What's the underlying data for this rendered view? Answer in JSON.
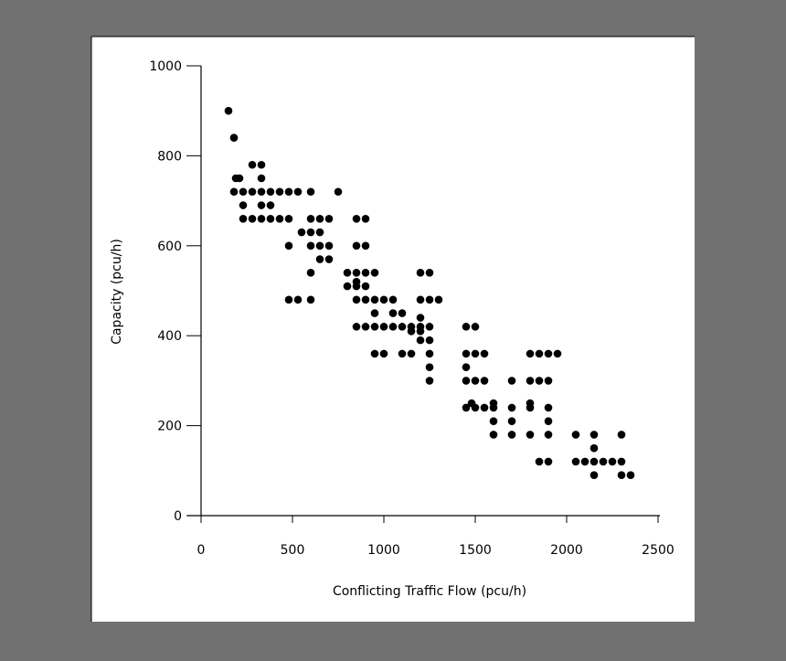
{
  "chart_data": {
    "type": "scatter",
    "title": "",
    "xlabel": "Conflicting Traffic Flow (pcu/h)",
    "ylabel": "Capacity (pcu/h)",
    "xlim": [
      0,
      2500
    ],
    "ylim": [
      0,
      1000
    ],
    "xticks": [
      "0",
      "500",
      "1000",
      "1500",
      "2000",
      "2500"
    ],
    "yticks": [
      "0",
      "200",
      "400",
      "600",
      "800",
      "1000"
    ],
    "xtick_values": [
      0,
      500,
      1000,
      1500,
      2000,
      2500
    ],
    "ytick_values": [
      0,
      200,
      400,
      600,
      800,
      1000
    ],
    "grid": false,
    "legend": "none",
    "marker_color": "#000000",
    "series": [
      {
        "points": [
          [
            150,
            900
          ],
          [
            180,
            840
          ],
          [
            190,
            750
          ],
          [
            210,
            750
          ],
          [
            180,
            720
          ],
          [
            230,
            720
          ],
          [
            280,
            780
          ],
          [
            330,
            780
          ],
          [
            330,
            750
          ],
          [
            280,
            720
          ],
          [
            330,
            720
          ],
          [
            380,
            720
          ],
          [
            430,
            720
          ],
          [
            480,
            720
          ],
          [
            530,
            720
          ],
          [
            600,
            720
          ],
          [
            750,
            720
          ],
          [
            230,
            690
          ],
          [
            330,
            690
          ],
          [
            380,
            690
          ],
          [
            230,
            660
          ],
          [
            280,
            660
          ],
          [
            330,
            660
          ],
          [
            380,
            660
          ],
          [
            430,
            660
          ],
          [
            480,
            660
          ],
          [
            600,
            660
          ],
          [
            650,
            660
          ],
          [
            700,
            660
          ],
          [
            850,
            660
          ],
          [
            900,
            660
          ],
          [
            600,
            630
          ],
          [
            650,
            630
          ],
          [
            550,
            630
          ],
          [
            480,
            600
          ],
          [
            600,
            600
          ],
          [
            650,
            600
          ],
          [
            700,
            600
          ],
          [
            850,
            600
          ],
          [
            900,
            600
          ],
          [
            650,
            570
          ],
          [
            700,
            570
          ],
          [
            600,
            540
          ],
          [
            800,
            540
          ],
          [
            850,
            540
          ],
          [
            900,
            540
          ],
          [
            950,
            540
          ],
          [
            1200,
            540
          ],
          [
            1250,
            540
          ],
          [
            800,
            510
          ],
          [
            850,
            510
          ],
          [
            900,
            510
          ],
          [
            850,
            520
          ],
          [
            480,
            480
          ],
          [
            530,
            480
          ],
          [
            600,
            480
          ],
          [
            850,
            480
          ],
          [
            900,
            480
          ],
          [
            950,
            480
          ],
          [
            1000,
            480
          ],
          [
            1050,
            480
          ],
          [
            1200,
            480
          ],
          [
            1250,
            480
          ],
          [
            1300,
            480
          ],
          [
            950,
            450
          ],
          [
            1050,
            450
          ],
          [
            1100,
            450
          ],
          [
            1200,
            440
          ],
          [
            850,
            420
          ],
          [
            900,
            420
          ],
          [
            950,
            420
          ],
          [
            1000,
            420
          ],
          [
            1050,
            420
          ],
          [
            1100,
            420
          ],
          [
            1150,
            420
          ],
          [
            1200,
            420
          ],
          [
            1250,
            420
          ],
          [
            1150,
            410
          ],
          [
            1200,
            410
          ],
          [
            1200,
            390
          ],
          [
            1250,
            390
          ],
          [
            1450,
            420
          ],
          [
            1500,
            420
          ],
          [
            950,
            360
          ],
          [
            1000,
            360
          ],
          [
            1100,
            360
          ],
          [
            1150,
            360
          ],
          [
            1250,
            360
          ],
          [
            1450,
            360
          ],
          [
            1500,
            360
          ],
          [
            1550,
            360
          ],
          [
            1800,
            360
          ],
          [
            1850,
            360
          ],
          [
            1900,
            360
          ],
          [
            1950,
            360
          ],
          [
            1250,
            330
          ],
          [
            1450,
            330
          ],
          [
            1250,
            300
          ],
          [
            1450,
            300
          ],
          [
            1500,
            300
          ],
          [
            1550,
            300
          ],
          [
            1700,
            300
          ],
          [
            1800,
            300
          ],
          [
            1850,
            300
          ],
          [
            1900,
            300
          ],
          [
            1450,
            240
          ],
          [
            1480,
            250
          ],
          [
            1500,
            240
          ],
          [
            1550,
            240
          ],
          [
            1600,
            240
          ],
          [
            1600,
            250
          ],
          [
            1700,
            240
          ],
          [
            1800,
            240
          ],
          [
            1800,
            250
          ],
          [
            1900,
            240
          ],
          [
            1600,
            210
          ],
          [
            1700,
            210
          ],
          [
            1900,
            210
          ],
          [
            1600,
            180
          ],
          [
            1700,
            180
          ],
          [
            1800,
            180
          ],
          [
            1900,
            180
          ],
          [
            2050,
            180
          ],
          [
            2150,
            180
          ],
          [
            2300,
            180
          ],
          [
            2150,
            150
          ],
          [
            1850,
            120
          ],
          [
            1900,
            120
          ],
          [
            2050,
            120
          ],
          [
            2100,
            120
          ],
          [
            2150,
            120
          ],
          [
            2200,
            120
          ],
          [
            2250,
            120
          ],
          [
            2300,
            120
          ],
          [
            2150,
            90
          ],
          [
            2300,
            90
          ],
          [
            2350,
            90
          ]
        ]
      }
    ]
  }
}
